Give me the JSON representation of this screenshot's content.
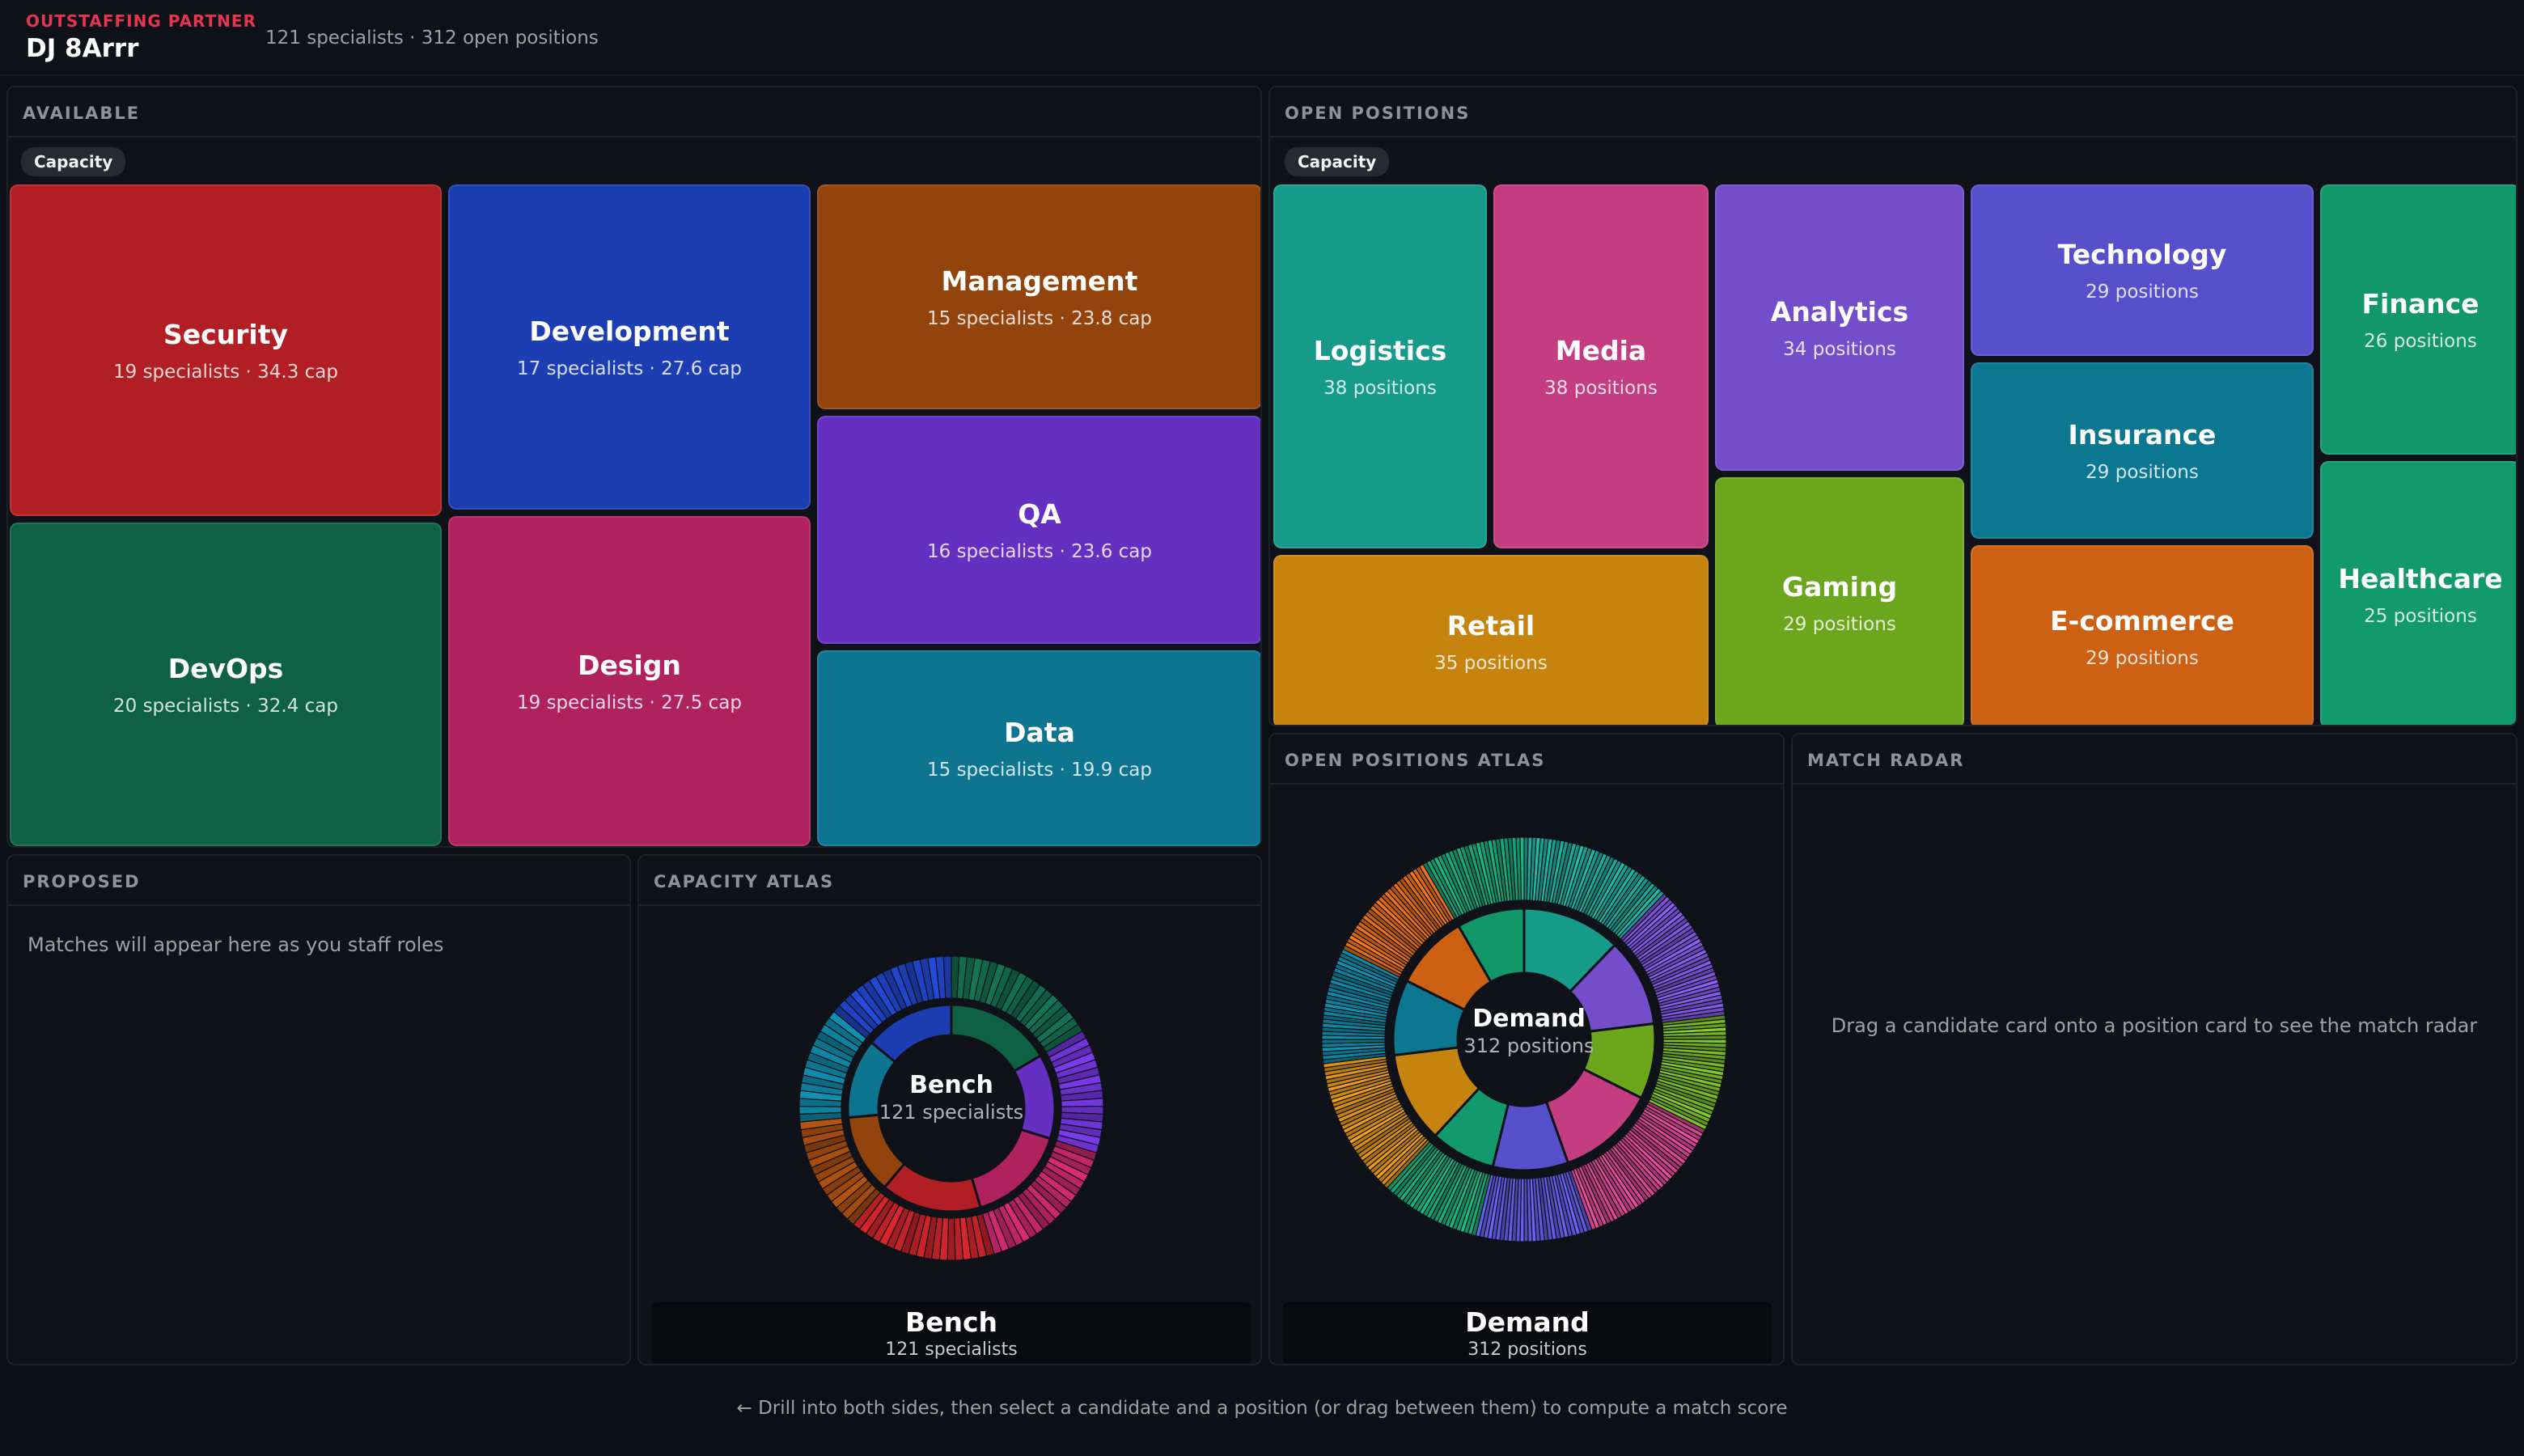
{
  "header": {
    "eyebrow": "OUTSTAFFING PARTNER",
    "brand": "DJ 8Arrr",
    "summary": "121 specialists · 312 open positions"
  },
  "available": {
    "title": "AVAILABLE",
    "chip": "Capacity",
    "tiles": [
      {
        "name": "Security",
        "meta": "19 specialists · 34.3 cap",
        "color": "#b11f24"
      },
      {
        "name": "Development",
        "meta": "17 specialists · 27.6 cap",
        "color": "#1d3db3"
      },
      {
        "name": "Management",
        "meta": "15 specialists · 23.8 cap",
        "color": "#93440c"
      },
      {
        "name": "QA",
        "meta": "16 specialists · 23.6 cap",
        "color": "#652fc2"
      },
      {
        "name": "Data",
        "meta": "15 specialists · 19.9 cap",
        "color": "#0d7590"
      },
      {
        "name": "DevOps",
        "meta": "20 specialists · 32.4 cap",
        "color": "#0f6145"
      },
      {
        "name": "Design",
        "meta": "19 specialists · 27.5 cap",
        "color": "#b0225f"
      }
    ]
  },
  "open_positions": {
    "title": "OPEN POSITIONS",
    "chip": "Capacity",
    "tiles": [
      {
        "name": "Logistics",
        "meta": "38 positions",
        "color": "#169a8a"
      },
      {
        "name": "Media",
        "meta": "38 positions",
        "color": "#c33d80"
      },
      {
        "name": "Analytics",
        "meta": "34 positions",
        "color": "#744dcb"
      },
      {
        "name": "Technology",
        "meta": "29 positions",
        "color": "#5651cb"
      },
      {
        "name": "Finance",
        "meta": "26 positions",
        "color": "#12976b"
      },
      {
        "name": "Insurance",
        "meta": "29 positions",
        "color": "#0b7790"
      },
      {
        "name": "Healthcare",
        "meta": "25 positions",
        "color": "#139a6c"
      },
      {
        "name": "Retail",
        "meta": "35 positions",
        "color": "#c6830e"
      },
      {
        "name": "Gaming",
        "meta": "29 positions",
        "color": "#6ca61c"
      },
      {
        "name": "E-commerce",
        "meta": "29 positions",
        "color": "#cd6113"
      }
    ]
  },
  "proposed": {
    "title": "PROPOSED",
    "empty_text": "Matches will appear here as you staff roles"
  },
  "capacity_atlas": {
    "title": "CAPACITY ATLAS",
    "center_name": "Bench",
    "center_sub": "121 specialists",
    "legend_name": "Bench",
    "legend_sub": "121 specialists"
  },
  "positions_atlas": {
    "title": "OPEN POSITIONS ATLAS",
    "center_name": "Demand",
    "center_sub": "312 positions",
    "legend_name": "Demand",
    "legend_sub": "312 positions"
  },
  "match_radar": {
    "title": "MATCH RADAR",
    "empty_text": "Drag a candidate card onto a position card to see the match radar"
  },
  "footer": {
    "hint": "← Drill into both sides, then select a candidate and a position (or drag between them) to compute a match score"
  },
  "chart_data": [
    {
      "type": "sunburst",
      "name": "Capacity Atlas",
      "center": "Bench",
      "total": 121,
      "segments": [
        {
          "label": "DevOps",
          "value": 20,
          "color": "#0f6145"
        },
        {
          "label": "QA",
          "value": 16,
          "color": "#652fc2"
        },
        {
          "label": "Design",
          "value": 19,
          "color": "#b0225f"
        },
        {
          "label": "Security",
          "value": 19,
          "color": "#b11f24"
        },
        {
          "label": "Management",
          "value": 15,
          "color": "#93440c"
        },
        {
          "label": "Data",
          "value": 15,
          "color": "#0d7590"
        },
        {
          "label": "Development",
          "value": 17,
          "color": "#1d3db3"
        }
      ]
    },
    {
      "type": "sunburst",
      "name": "Open Positions Atlas",
      "center": "Demand",
      "total": 312,
      "segments": [
        {
          "label": "Logistics",
          "value": 38,
          "color": "#169a8a"
        },
        {
          "label": "Analytics",
          "value": 34,
          "color": "#744dcb"
        },
        {
          "label": "Gaming",
          "value": 29,
          "color": "#6ca61c"
        },
        {
          "label": "Media",
          "value": 38,
          "color": "#c33d80"
        },
        {
          "label": "Technology",
          "value": 29,
          "color": "#5651cb"
        },
        {
          "label": "Healthcare",
          "value": 25,
          "color": "#139a6c"
        },
        {
          "label": "Retail",
          "value": 35,
          "color": "#c6830e"
        },
        {
          "label": "Insurance",
          "value": 29,
          "color": "#0b7790"
        },
        {
          "label": "E-commerce",
          "value": 29,
          "color": "#cd6113"
        },
        {
          "label": "Finance",
          "value": 26,
          "color": "#12976b"
        }
      ]
    }
  ]
}
